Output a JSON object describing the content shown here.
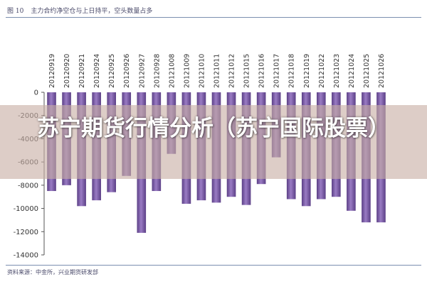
{
  "figure": {
    "number": "图 10",
    "caption": "主力合约净空仓与上日持平，空头数量占多"
  },
  "source": "资料来源：中金所，兴业期货研发部",
  "overlay": {
    "headline": "苏宁期货行情分析（苏宁国际股票）"
  },
  "colors": {
    "bar": "#7a5aa6",
    "bar_dark": "#5b3f86",
    "bar_light": "#9a7cc4",
    "axis": "#555555",
    "overlay": "#c8afa5"
  },
  "chart_data": {
    "type": "bar",
    "title": "",
    "xlabel": "",
    "ylabel": "",
    "ylim": [
      -14000,
      0
    ],
    "yticks": [
      0,
      -2000,
      -4000,
      -6000,
      -8000,
      -10000,
      -12000,
      -14000
    ],
    "categories": [
      "20120919",
      "20120920",
      "20120921",
      "20120924",
      "20120925",
      "20120926",
      "20120927",
      "20120928",
      "20121008",
      "20121009",
      "20121010",
      "20121011",
      "20121012",
      "20121015",
      "20121016",
      "20121017",
      "20121018",
      "20121019",
      "20121022",
      "20121023",
      "20121024",
      "20121025",
      "20121026"
    ],
    "values": [
      -8500,
      -8000,
      -9800,
      -9300,
      -8600,
      -7200,
      -12100,
      -8500,
      -5300,
      -9600,
      -9300,
      -9500,
      -9000,
      -9700,
      -7900,
      -5600,
      -9200,
      -9800,
      -9200,
      -9000,
      -10200,
      -11200,
      -11200
    ],
    "legend": "none",
    "grid": false
  }
}
